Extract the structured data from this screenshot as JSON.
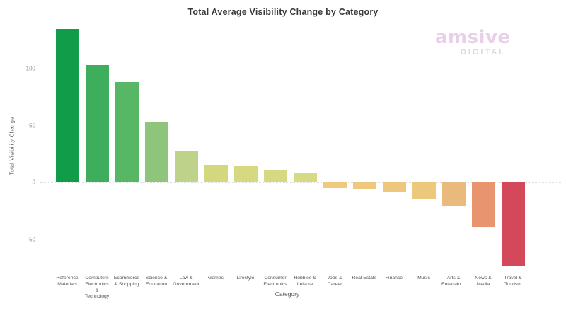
{
  "title": "Total Average Visibility Change by Category",
  "watermark": {
    "brand": "amsive",
    "sub": "DIGITAL"
  },
  "chart_data": {
    "type": "bar",
    "title": "Total Average Visibility Change by Category",
    "xlabel": "Category",
    "ylabel": "Total Visibility Change",
    "ylim": [
      -80,
      142
    ],
    "yticks": [
      100,
      50,
      0,
      -50
    ],
    "grid": "horizontal-dotted",
    "legend": "none",
    "categories": [
      "Reference Materials",
      "Computers Electronics & Technology",
      "Ecommerce & Shopping",
      "Science & Education",
      "Law & Government",
      "Games",
      "Lifestyle",
      "Consumer Electronics",
      "Hobbies & Leisure",
      "Jobs & Career",
      "Real Estate",
      "Finance",
      "Music",
      "Arts & Entertain…",
      "News & Media",
      "Travel & Tourism"
    ],
    "values": [
      135,
      103,
      88,
      53,
      28,
      15,
      14,
      11,
      8,
      -5,
      -6,
      -9,
      -15,
      -21,
      -39,
      -74
    ],
    "colors": [
      "#119c4a",
      "#3fae5c",
      "#58b765",
      "#8dc57d",
      "#bed289",
      "#d3d87e",
      "#d6d980",
      "#d6d982",
      "#d7da85",
      "#eeca7e",
      "#edc97d",
      "#edc87c",
      "#ecc87d",
      "#e9ba7c",
      "#e8946f",
      "#d4495a"
    ],
    "label_lines": [
      [
        "Reference",
        "Materials"
      ],
      [
        "Computers",
        "Electronics",
        "&",
        "Technology"
      ],
      [
        "Ecommerce",
        "& Shopping"
      ],
      [
        "Science &",
        "Education"
      ],
      [
        "Law &",
        "Government"
      ],
      [
        "Games"
      ],
      [
        "Lifestyle"
      ],
      [
        "Consumer",
        "Electronics"
      ],
      [
        "Hobbies &",
        "Leisure"
      ],
      [
        "Jobs &",
        "Career"
      ],
      [
        "Real Estate"
      ],
      [
        "Finance"
      ],
      [
        "Music"
      ],
      [
        "Arts &",
        "Entertain…"
      ],
      [
        "News &",
        "Media"
      ],
      [
        "Travel &",
        "Tourism"
      ]
    ]
  }
}
